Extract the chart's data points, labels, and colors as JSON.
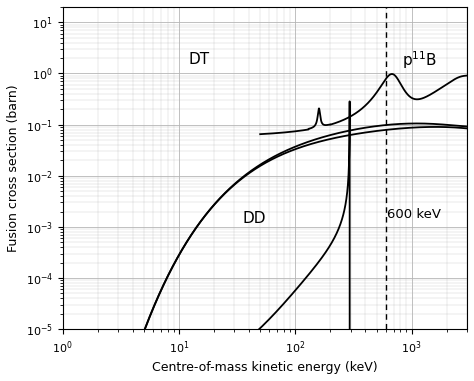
{
  "xlabel": "Centre-of-mass kinetic energy (keV)",
  "ylabel": "Fusion cross section (barn)",
  "xlim": [
    1,
    3000
  ],
  "ylim": [
    1e-05,
    20
  ],
  "label_DT": "DT",
  "label_DD": "DD",
  "label_600": "600 keV",
  "vline_x": 600,
  "background_color": "#ffffff",
  "grid_color": "#b5b5b5",
  "line_color": "#000000",
  "fontsize_labels": 9,
  "fontsize_ticks": 8,
  "fontsize_annot": 11
}
